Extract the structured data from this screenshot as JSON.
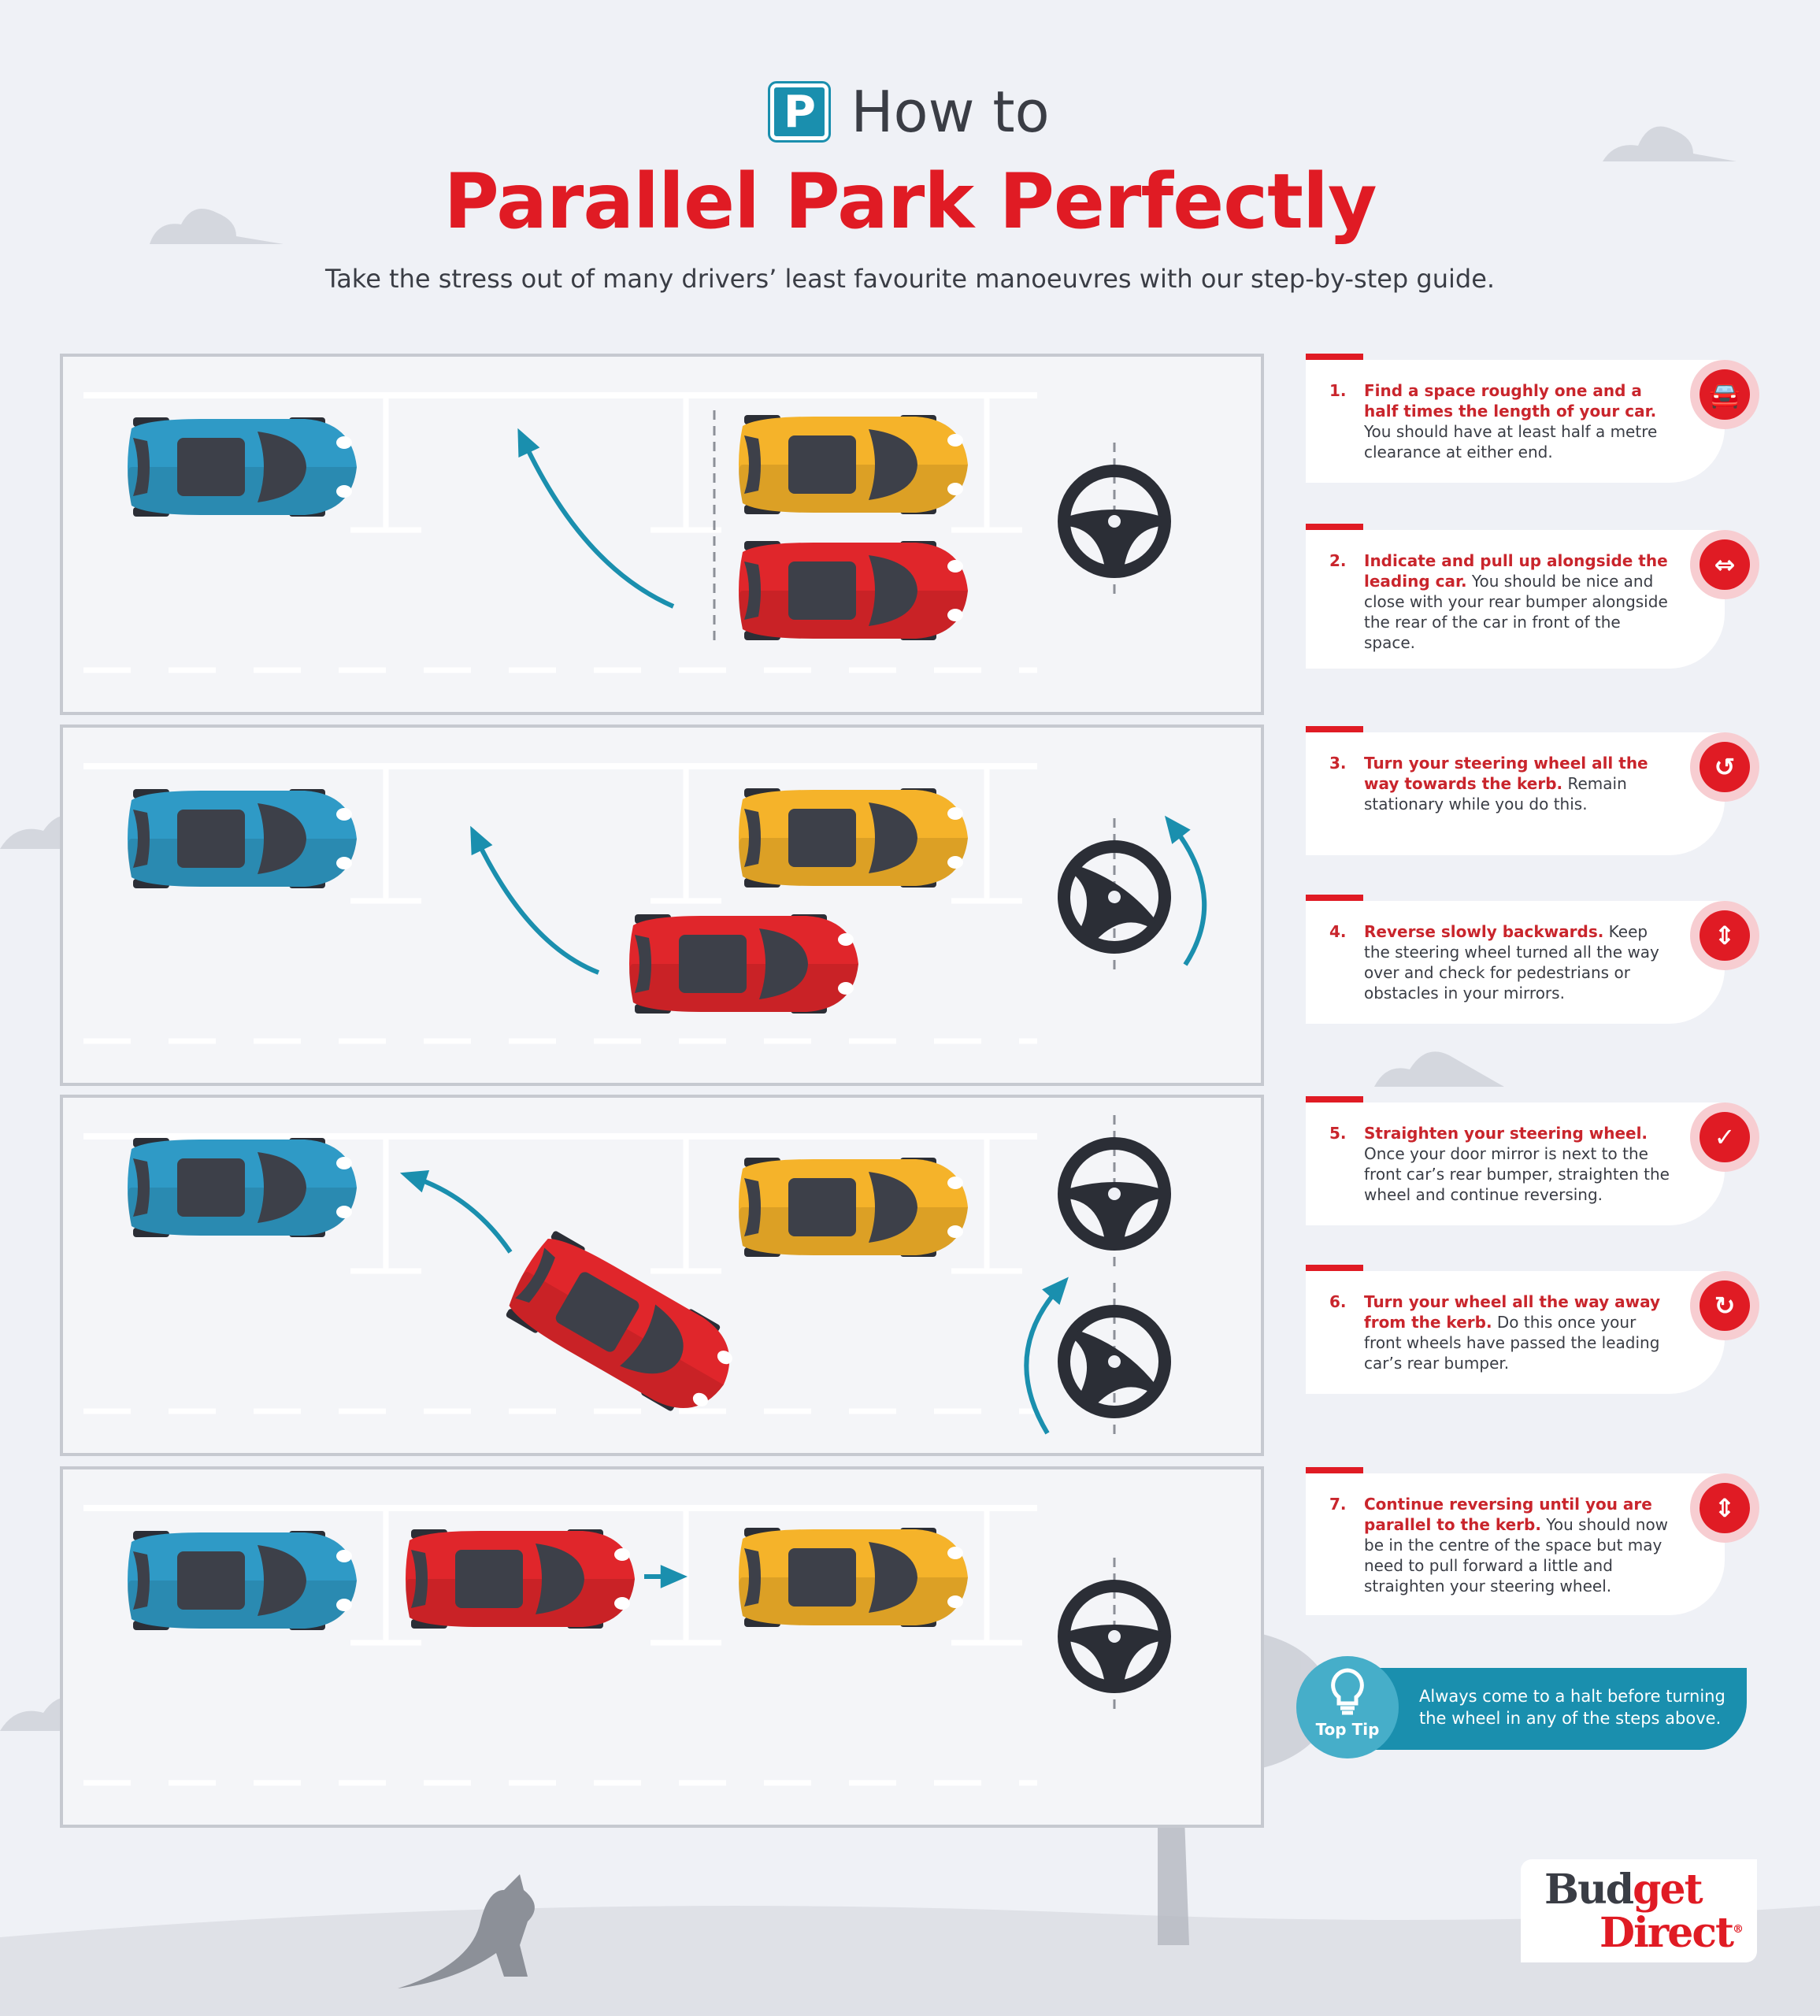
{
  "header": {
    "icon_letter": "P",
    "how_to": "How to",
    "title": "Parallel Park Perfectly",
    "subtitle": "Take the stress out of many drivers’ least favourite manoeuvres with our step-by-step guide."
  },
  "colors": {
    "red": "#e01b24",
    "teal": "#1a8fae",
    "blue_car": "#2f9ac6",
    "yellow_car": "#f5b32a",
    "red_car": "#e0262b",
    "wheel": "#2b2e36"
  },
  "steps": [
    {
      "num": "1.",
      "lead": "Find a space roughly one and a half times the length of your car.",
      "text": " You should have at least half a metre clearance at either end.",
      "icon": "car-icon",
      "glyph": "🚘"
    },
    {
      "num": "2.",
      "lead": "Indicate and pull up alongside the leading car.",
      "text": " You should be nice and close with your rear bumper alongside the rear of the car in front of the space.",
      "icon": "indicator-arrows-icon",
      "glyph": "⇔"
    },
    {
      "num": "3.",
      "lead": "Turn your steering wheel all the way towards the kerb.",
      "text": " Remain stationary while you do this.",
      "icon": "rotate-left-icon",
      "glyph": "↺"
    },
    {
      "num": "4.",
      "lead": "Reverse slowly backwards.",
      "text": " Keep the steering wheel turned all the way over and check for pedestrians or obstacles in your mirrors.",
      "icon": "up-down-arrow-icon",
      "glyph": "⇕"
    },
    {
      "num": "5.",
      "lead": "Straighten your steering wheel.",
      "text": " Once your door mirror is next to the front car’s rear bumper, straighten the wheel and continue reversing.",
      "icon": "check-icon",
      "glyph": "✓"
    },
    {
      "num": "6.",
      "lead": "Turn your wheel all the way away from the kerb.",
      "text": " Do this once your front wheels have passed the leading car’s rear bumper.",
      "icon": "rotate-right-icon",
      "glyph": "↻"
    },
    {
      "num": "7.",
      "lead": "Continue reversing until you are parallel to the kerb.",
      "text": " You should now be in the centre of the space but may need to pull forward a little and straighten your steering wheel.",
      "icon": "up-down-arrow-icon",
      "glyph": "⇕"
    }
  ],
  "tip": {
    "label": "Top Tip",
    "text": "Always come to a halt before turning the wheel in any of the steps above."
  },
  "logo": {
    "part1": "Bud",
    "part2": "get",
    "part3": "Direct",
    "reg": "®"
  }
}
